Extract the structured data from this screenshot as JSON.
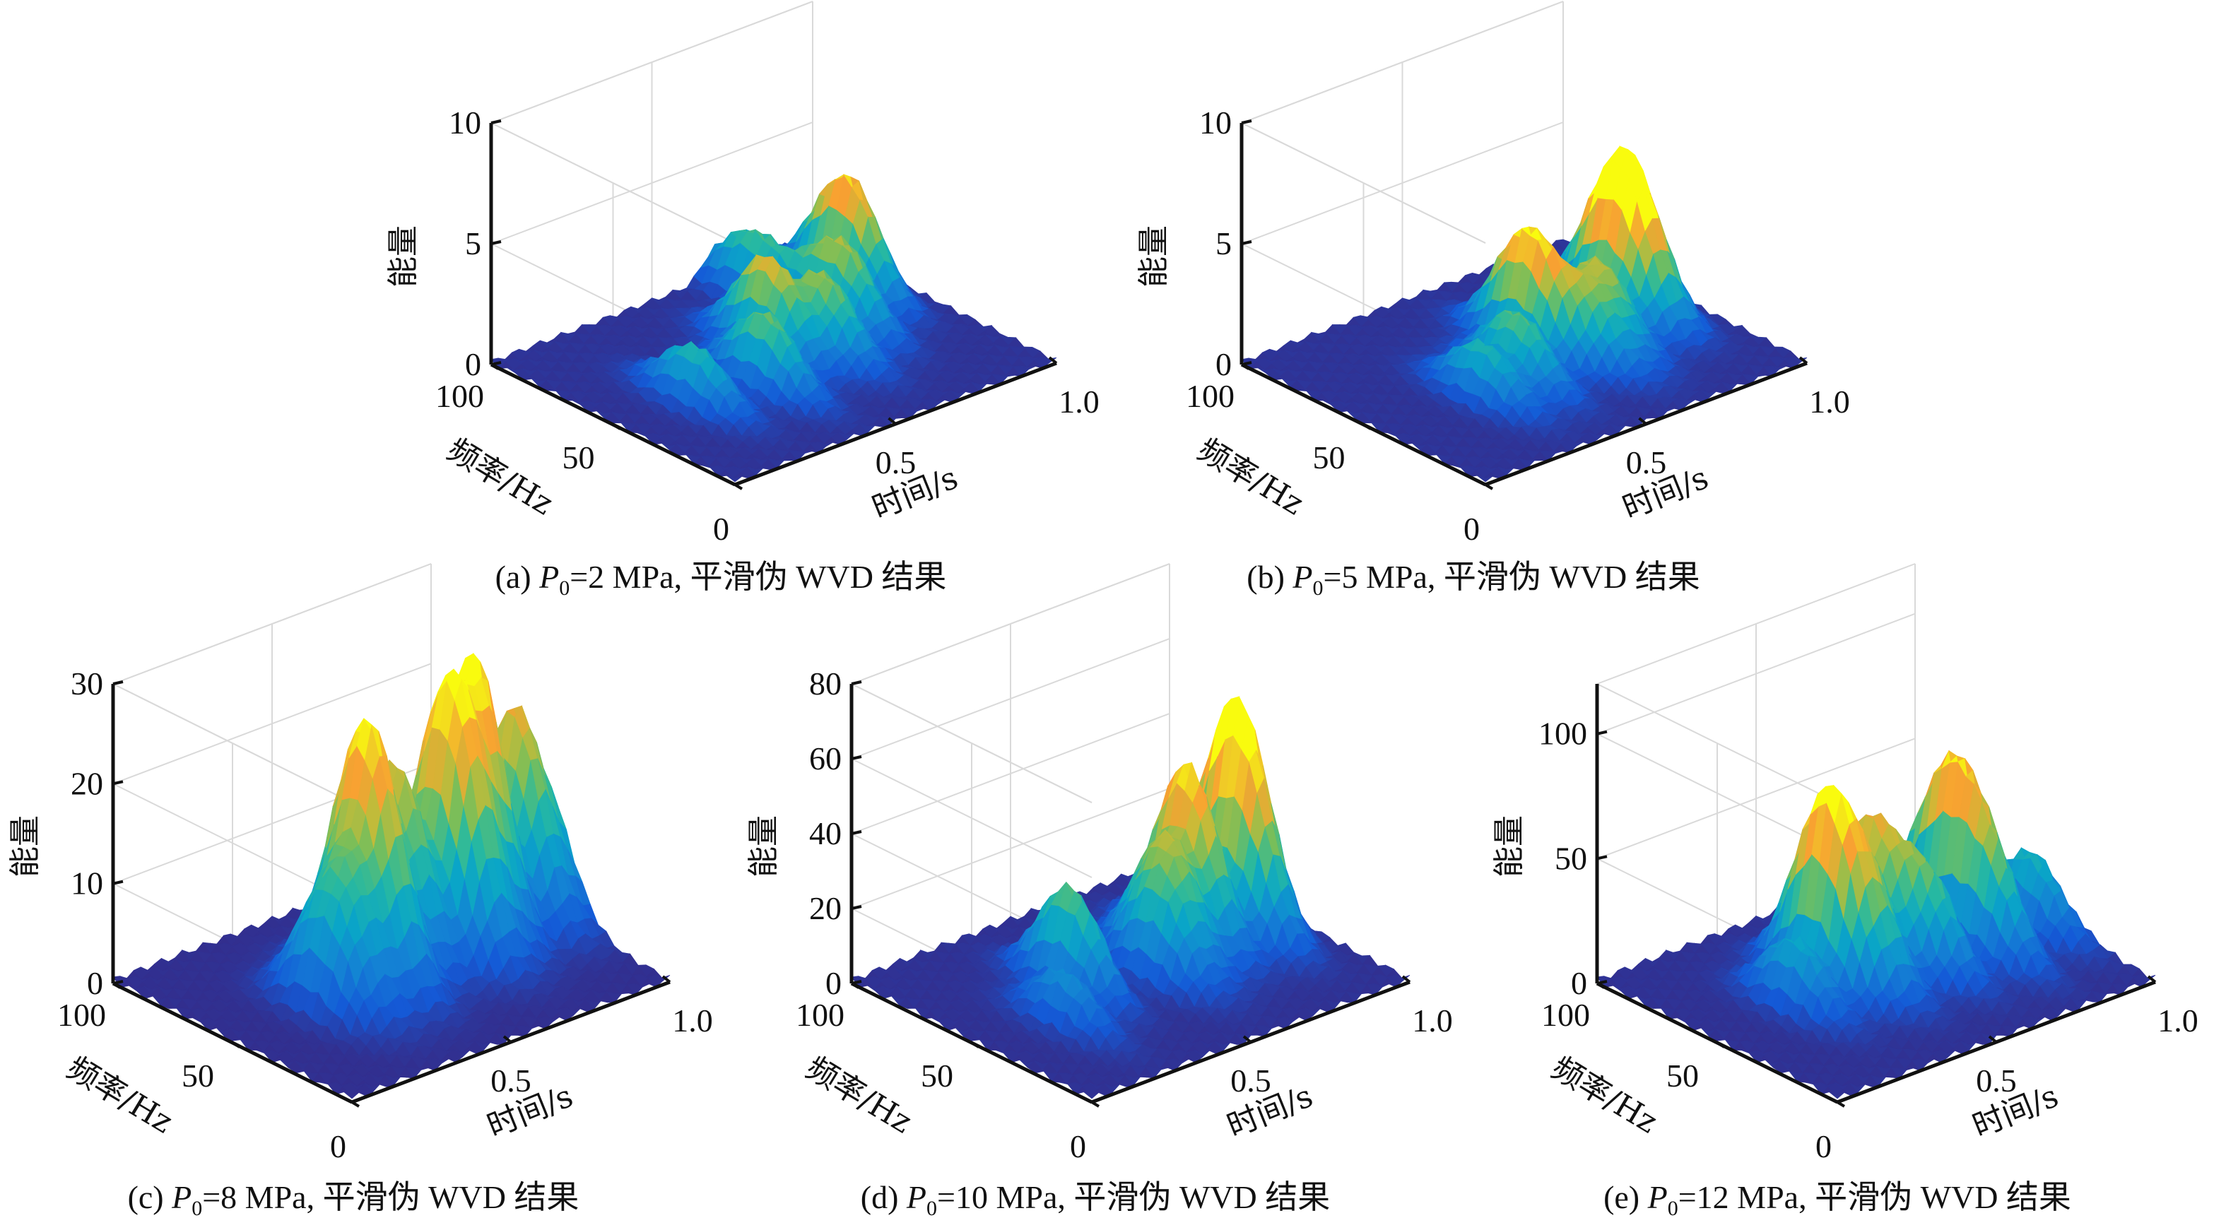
{
  "chart_data": [
    {
      "id": "a",
      "type": "surface3d",
      "caption": {
        "prefix": "(a) ",
        "var": "P",
        "sub": "0",
        "rest": "=2 MPa, 平滑伪 WVD 结果"
      },
      "xlabel": "时间/s",
      "ylabel": "频率/Hz",
      "zlabel": "能量",
      "xlim": [
        0,
        1.0
      ],
      "ylim": [
        0,
        100
      ],
      "zlim": [
        0,
        10
      ],
      "xticks": [
        "0.5",
        "1.0"
      ],
      "yticks": [
        "0",
        "50",
        "100"
      ],
      "zticks": [
        "0",
        "5",
        "10"
      ],
      "peaks": [
        {
          "t": 0.22,
          "f": 45,
          "e": 2.3
        },
        {
          "t": 0.4,
          "f": 40,
          "e": 3.0
        },
        {
          "t": 0.52,
          "f": 55,
          "e": 3.9
        },
        {
          "t": 0.62,
          "f": 45,
          "e": 3.2
        },
        {
          "t": 0.75,
          "f": 55,
          "e": 3.5
        },
        {
          "t": 0.88,
          "f": 70,
          "e": 4.9
        },
        {
          "t": 0.7,
          "f": 85,
          "e": 2.6
        }
      ]
    },
    {
      "id": "b",
      "type": "surface3d",
      "caption": {
        "prefix": "(b) ",
        "var": "P",
        "sub": "0",
        "rest": "=5 MPa, 平滑伪 WVD 结果"
      },
      "xlabel": "时间/s",
      "ylabel": "频率/Hz",
      "zlabel": "能量",
      "xlim": [
        0,
        1.0
      ],
      "ylim": [
        0,
        100
      ],
      "zlim": [
        0,
        10
      ],
      "xticks": [
        "0.5",
        "1.0"
      ],
      "yticks": [
        "0",
        "50",
        "100"
      ],
      "zticks": [
        "0",
        "5",
        "10"
      ],
      "peaks": [
        {
          "t": 0.3,
          "f": 40,
          "e": 2.2
        },
        {
          "t": 0.42,
          "f": 42,
          "e": 2.8
        },
        {
          "t": 0.55,
          "f": 55,
          "e": 4.8
        },
        {
          "t": 0.62,
          "f": 40,
          "e": 2.6
        },
        {
          "t": 0.7,
          "f": 45,
          "e": 3.1
        },
        {
          "t": 0.82,
          "f": 55,
          "e": 4.6
        },
        {
          "t": 0.88,
          "f": 55,
          "e": 4.6
        }
      ]
    },
    {
      "id": "c",
      "type": "surface3d",
      "caption": {
        "prefix": "(c) ",
        "var": "P",
        "sub": "0",
        "rest": "=8 MPa, 平滑伪 WVD 结果"
      },
      "xlabel": "时间/s",
      "ylabel": "频率/Hz",
      "zlabel": "能量",
      "xlim": [
        0,
        1.0
      ],
      "ylim": [
        0,
        100
      ],
      "zlim": [
        0,
        30
      ],
      "xticks": [
        "0.5",
        "1.0"
      ],
      "yticks": [
        "0",
        "50",
        "100"
      ],
      "zticks": [
        "0",
        "10",
        "20",
        "30"
      ],
      "peaks": [
        {
          "t": 0.25,
          "f": 45,
          "e": 9
        },
        {
          "t": 0.32,
          "f": 45,
          "e": 12
        },
        {
          "t": 0.4,
          "f": 50,
          "e": 18
        },
        {
          "t": 0.45,
          "f": 48,
          "e": 15
        },
        {
          "t": 0.55,
          "f": 55,
          "e": 20
        },
        {
          "t": 0.66,
          "f": 50,
          "e": 19
        },
        {
          "t": 0.72,
          "f": 50,
          "e": 19
        },
        {
          "t": 0.8,
          "f": 55,
          "e": 26
        },
        {
          "t": 0.92,
          "f": 55,
          "e": 20
        },
        {
          "t": 1.0,
          "f": 55,
          "e": 12
        }
      ]
    },
    {
      "id": "d",
      "type": "surface3d",
      "caption": {
        "prefix": "(d) ",
        "var": "P",
        "sub": "0",
        "rest": "=10 MPa, 平滑伪 WVD 结果"
      },
      "xlabel": "时间/s",
      "ylabel": "频率/Hz",
      "zlabel": "能量",
      "xlim": [
        0,
        1.0
      ],
      "ylim": [
        0,
        100
      ],
      "zlim": [
        0,
        80
      ],
      "xticks": [
        "0.5",
        "1.0"
      ],
      "yticks": [
        "0",
        "50",
        "100"
      ],
      "zticks": [
        "0",
        "20",
        "40",
        "60",
        "80"
      ],
      "peaks": [
        {
          "t": 0.22,
          "f": 40,
          "e": 14
        },
        {
          "t": 0.35,
          "f": 55,
          "e": 28
        },
        {
          "t": 0.55,
          "f": 45,
          "e": 20
        },
        {
          "t": 0.62,
          "f": 50,
          "e": 30
        },
        {
          "t": 0.72,
          "f": 55,
          "e": 48
        },
        {
          "t": 0.85,
          "f": 50,
          "e": 38
        },
        {
          "t": 0.9,
          "f": 60,
          "e": 44
        }
      ]
    },
    {
      "id": "e",
      "type": "surface3d",
      "caption": {
        "prefix": "(e) ",
        "var": "P",
        "sub": "0",
        "rest": "=12 MPa, 平滑伪 WVD 结果"
      },
      "xlabel": "时间/s",
      "ylabel": "频率/Hz",
      "zlabel": "能量",
      "xlim": [
        0,
        1.0
      ],
      "ylim": [
        0,
        100
      ],
      "zlim": [
        0,
        120
      ],
      "xticks": [
        "0.5",
        "1.0"
      ],
      "yticks": [
        "0",
        "50",
        "100"
      ],
      "zticks": [
        "0",
        "50",
        "100"
      ],
      "peaks": [
        {
          "t": 0.25,
          "f": 50,
          "e": 28
        },
        {
          "t": 0.38,
          "f": 55,
          "e": 72
        },
        {
          "t": 0.45,
          "f": 48,
          "e": 45
        },
        {
          "t": 0.55,
          "f": 60,
          "e": 55
        },
        {
          "t": 0.62,
          "f": 45,
          "e": 40
        },
        {
          "t": 0.8,
          "f": 60,
          "e": 62
        },
        {
          "t": 0.78,
          "f": 40,
          "e": 38
        },
        {
          "t": 0.95,
          "f": 45,
          "e": 32
        }
      ]
    }
  ]
}
